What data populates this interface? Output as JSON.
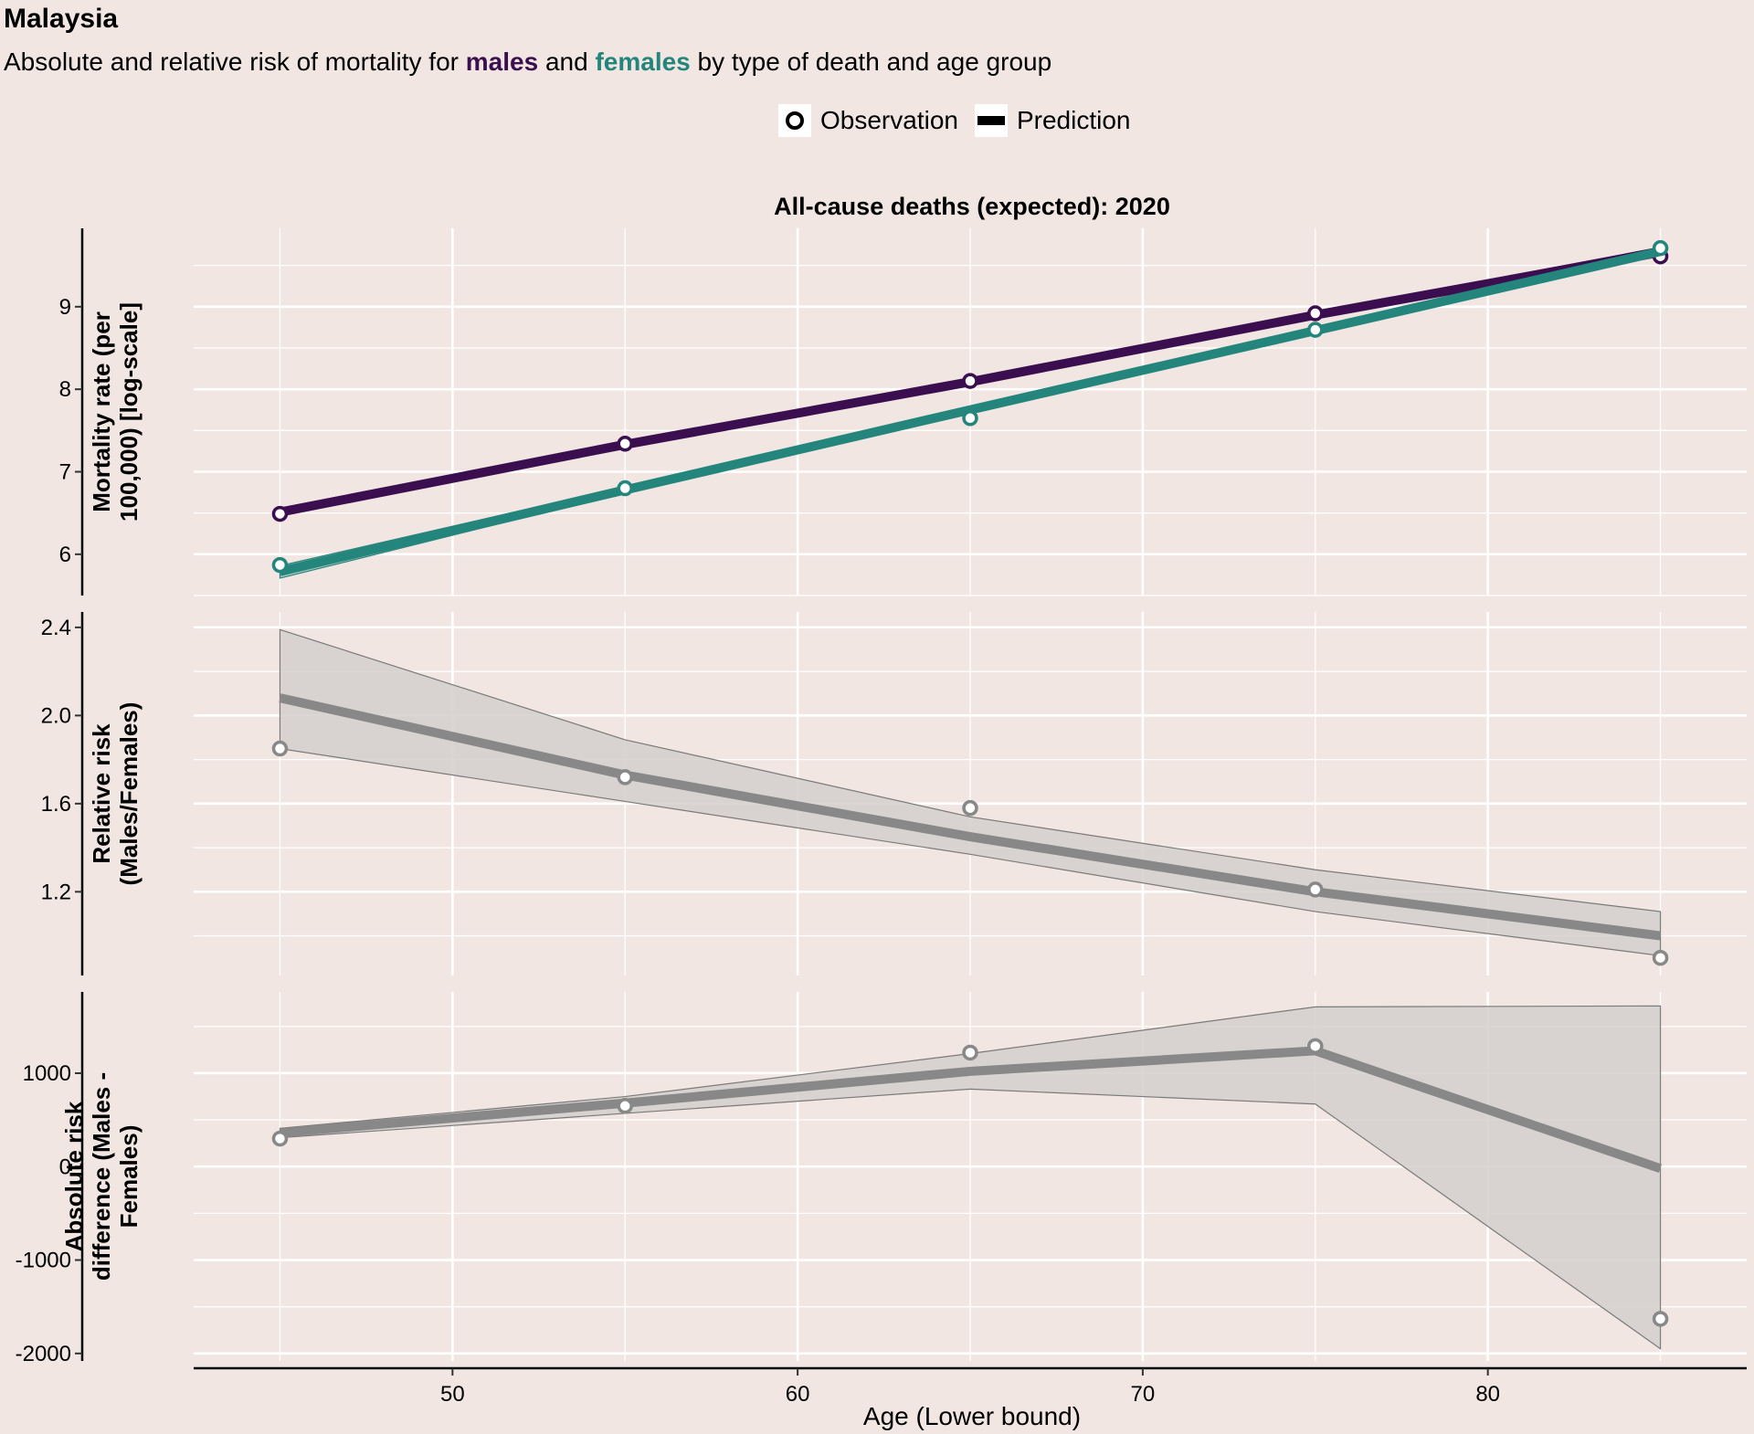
{
  "title": "Malaysia",
  "subtitle": {
    "part1": "Absolute and relative risk of mortality for ",
    "males": "males",
    "part2": " and ",
    "females": "females",
    "part3": " by type of death and age group"
  },
  "legend": {
    "observation": "Observation",
    "prediction": "Prediction"
  },
  "colors": {
    "males": "#3b0f4f",
    "females": "#24857c",
    "risk": "#888888",
    "band": "#d3cfcd",
    "band_edge": "#7a7a7a",
    "background": "#f1e6e2",
    "grid": "#ffffff"
  },
  "chart_data": {
    "type": "line",
    "facet_title": "All-cause deaths (expected): 2020",
    "xlabel": "Age (Lower bound)",
    "xlim": [
      42.5,
      87.5
    ],
    "x_ticks": [
      "50",
      "60",
      "70",
      "80"
    ],
    "x_tick_values": [
      50,
      60,
      70,
      80
    ],
    "grid": true,
    "legend_position": "top",
    "panels": [
      {
        "id": "mortality",
        "ylabel_lines": [
          "Mortality rate (per",
          "100,000) [log-scale]"
        ],
        "ylim": [
          5.5,
          9.95
        ],
        "y_ticks": [
          "6",
          "7",
          "8",
          "9"
        ],
        "y_tick_values": [
          6,
          7,
          8,
          9
        ],
        "series": [
          {
            "name": "males",
            "x": [
              45,
              55,
              65,
              75,
              85
            ],
            "observed": [
              6.49,
              7.34,
              8.1,
              8.92,
              9.61
            ],
            "predicted": [
              6.51,
              7.33,
              8.09,
              8.9,
              9.66
            ],
            "lower": [
              6.47,
              7.31,
              8.07,
              8.88,
              9.62
            ],
            "upper": [
              6.56,
              7.36,
              8.11,
              8.93,
              9.72
            ]
          },
          {
            "name": "females",
            "x": [
              45,
              55,
              65,
              75,
              85
            ],
            "observed": [
              5.87,
              6.8,
              7.65,
              8.72,
              9.71
            ],
            "predicted": [
              5.79,
              6.78,
              7.75,
              8.71,
              9.67
            ],
            "lower": [
              5.71,
              6.75,
              7.73,
              8.69,
              9.63
            ],
            "upper": [
              5.86,
              6.82,
              7.78,
              8.74,
              9.71
            ]
          }
        ]
      },
      {
        "id": "relative_risk",
        "ylabel_lines": [
          "Relative risk",
          "(Males/Females)"
        ],
        "ylim": [
          0.82,
          2.47
        ],
        "y_ticks": [
          "1.2",
          "1.6",
          "2.0",
          "2.4"
        ],
        "y_tick_values": [
          1.2,
          1.6,
          2.0,
          2.4
        ],
        "x": [
          45,
          55,
          65,
          75,
          85
        ],
        "observed": [
          1.85,
          1.72,
          1.58,
          1.21,
          0.9
        ],
        "predicted": [
          2.08,
          1.73,
          1.45,
          1.2,
          1.0
        ],
        "lower": [
          1.85,
          1.61,
          1.37,
          1.11,
          0.91
        ],
        "upper": [
          2.39,
          1.89,
          1.54,
          1.3,
          1.11
        ]
      },
      {
        "id": "absolute_risk",
        "ylabel_lines": [
          "Absolute risk",
          "difference (Males -",
          "Females)"
        ],
        "ylim": [
          -2080,
          1870
        ],
        "y_ticks": [
          "-2000",
          "-1000",
          "0",
          "1000"
        ],
        "y_tick_values": [
          -2000,
          -1000,
          0,
          1000
        ],
        "x": [
          45,
          55,
          65,
          75,
          85
        ],
        "observed": [
          300,
          650,
          1220,
          1290,
          -1630
        ],
        "predicted": [
          360,
          680,
          1020,
          1240,
          -20
        ],
        "lower": [
          310,
          570,
          830,
          670,
          -1950
        ],
        "upper": [
          410,
          750,
          1210,
          1710,
          1720
        ]
      }
    ]
  }
}
